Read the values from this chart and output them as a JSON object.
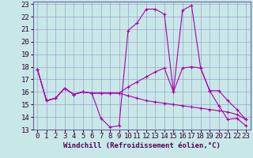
{
  "xlabel": "Windchill (Refroidissement éolien,°C)",
  "xlim": [
    -0.5,
    23.5
  ],
  "ylim": [
    13,
    23.2
  ],
  "yticks": [
    13,
    14,
    15,
    16,
    17,
    18,
    19,
    20,
    21,
    22,
    23
  ],
  "xticks": [
    0,
    1,
    2,
    3,
    4,
    5,
    6,
    7,
    8,
    9,
    10,
    11,
    12,
    13,
    14,
    15,
    16,
    17,
    18,
    19,
    20,
    21,
    22,
    23
  ],
  "background_color": "#c8e8e8",
  "grid_color": "#a0a0cc",
  "line_color": "#aa00aa",
  "lines": [
    [
      17.8,
      15.3,
      15.5,
      16.3,
      15.8,
      16.0,
      15.9,
      13.9,
      13.2,
      13.3,
      20.9,
      21.5,
      22.6,
      22.6,
      22.2,
      16.0,
      22.5,
      22.9,
      17.9,
      16.1,
      14.9,
      13.8,
      13.9,
      13.3
    ],
    [
      17.8,
      15.3,
      15.5,
      16.3,
      15.8,
      16.0,
      15.9,
      15.9,
      15.9,
      15.9,
      16.4,
      16.8,
      17.2,
      17.6,
      17.9,
      16.0,
      17.9,
      18.0,
      17.9,
      16.1,
      16.1,
      15.3,
      14.6,
      13.8
    ],
    [
      17.8,
      15.3,
      15.5,
      16.3,
      15.8,
      16.0,
      15.9,
      15.9,
      15.9,
      15.9,
      15.7,
      15.5,
      15.3,
      15.2,
      15.1,
      15.0,
      14.9,
      14.8,
      14.7,
      14.6,
      14.5,
      14.4,
      14.2,
      13.8
    ]
  ],
  "fontsize": 6.5,
  "marker": "+"
}
